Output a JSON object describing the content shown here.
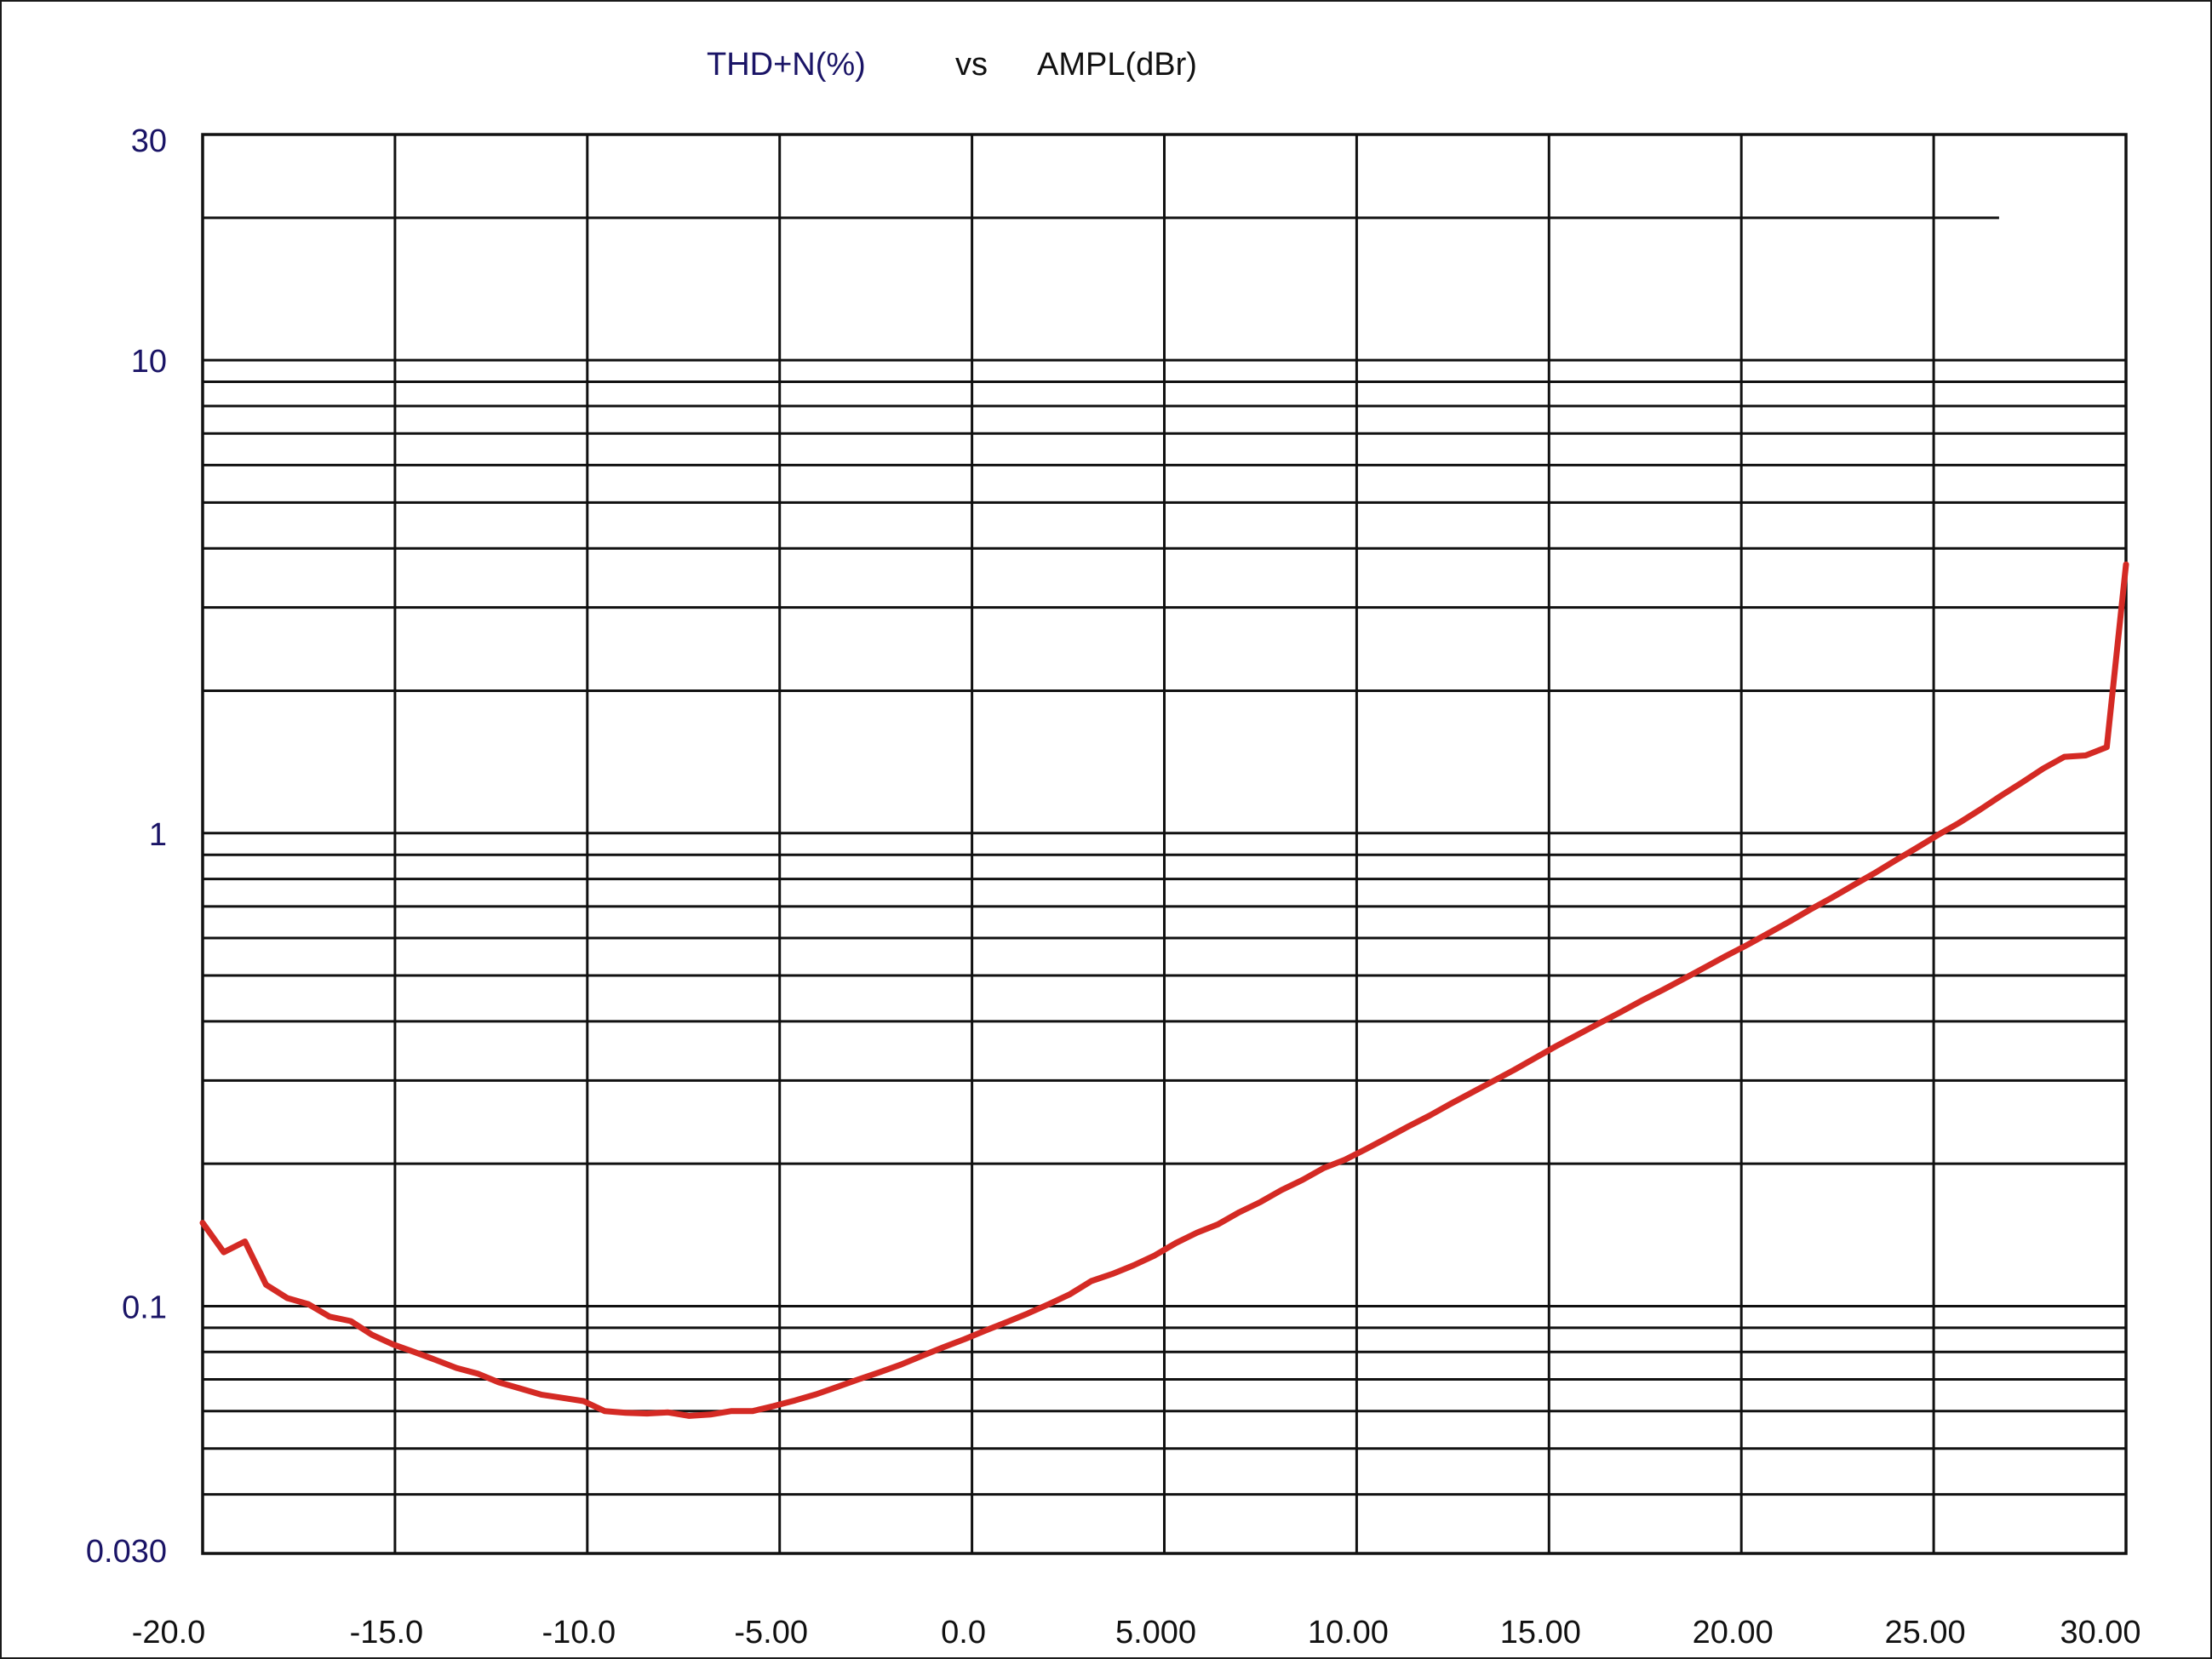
{
  "chart_data": {
    "type": "line",
    "title_parts": [
      {
        "text": "THD+N(%)",
        "color": "#1a1466"
      },
      {
        "text": "vs",
        "color": "#111111"
      },
      {
        "text": "AMPL(dBr)",
        "color": "#111111"
      }
    ],
    "xlabel": "",
    "ylabel": "",
    "x_scale": "linear",
    "y_scale": "log",
    "xlim": [
      -20,
      30
    ],
    "ylim": [
      0.03,
      30
    ],
    "x_ticks": [
      {
        "value": -20,
        "label": "-20.0"
      },
      {
        "value": -15,
        "label": "-15.0"
      },
      {
        "value": -10,
        "label": "-10.0"
      },
      {
        "value": -5,
        "label": "-5.00"
      },
      {
        "value": 0,
        "label": "0.0"
      },
      {
        "value": 5,
        "label": "5.000"
      },
      {
        "value": 10,
        "label": "10.00"
      },
      {
        "value": 15,
        "label": "15.00"
      },
      {
        "value": 20,
        "label": "20.00"
      },
      {
        "value": 25,
        "label": "25.00"
      },
      {
        "value": 30,
        "label": "30.00"
      }
    ],
    "y_ticks": [
      {
        "value": 30,
        "label": "30"
      },
      {
        "value": 10,
        "label": "10"
      },
      {
        "value": 1,
        "label": "1"
      },
      {
        "value": 0.1,
        "label": "0.1"
      },
      {
        "value": 0.03,
        "label": "0.030"
      }
    ],
    "y_grid_values": [
      0.04,
      0.05,
      0.06,
      0.07,
      0.08,
      0.09,
      0.1,
      0.2,
      0.3,
      0.4,
      0.5,
      0.6,
      0.7,
      0.8,
      0.9,
      1,
      2,
      3,
      4,
      5,
      6,
      7,
      8,
      9,
      10,
      20
    ],
    "grid": true,
    "legend": "none",
    "series": [
      {
        "color": "#d42a24",
        "x": [
          -20.0,
          -19.45,
          -18.9,
          -18.35,
          -17.8,
          -17.25,
          -16.7,
          -16.15,
          -15.6,
          -15.05,
          -14.5,
          -13.95,
          -13.4,
          -12.85,
          -12.3,
          -11.75,
          -11.2,
          -10.65,
          -10.1,
          -9.55,
          -9.0,
          -8.45,
          -7.9,
          -7.35,
          -6.8,
          -6.25,
          -5.7,
          -5.15,
          -4.6,
          -4.05,
          -3.5,
          -2.95,
          -2.4,
          -1.85,
          -1.3,
          -0.75,
          -0.2,
          0.35,
          0.9,
          1.45,
          2.0,
          2.55,
          3.1,
          3.65,
          4.2,
          4.75,
          5.3,
          5.85,
          6.4,
          6.95,
          7.5,
          8.05,
          8.6,
          9.15,
          9.7,
          10.25,
          10.8,
          11.35,
          11.9,
          12.45,
          13.0,
          13.55,
          14.1,
          14.65,
          15.2,
          15.75,
          16.3,
          16.85,
          17.4,
          17.95,
          18.5,
          19.05,
          19.6,
          20.15,
          20.7,
          21.25,
          21.8,
          22.35,
          22.9,
          23.45,
          24.0,
          24.55,
          25.1,
          25.65,
          26.2,
          26.75,
          27.3,
          27.85,
          28.4,
          28.95,
          29.5,
          30.0
        ],
        "y": [
          0.15,
          0.13,
          0.137,
          0.111,
          0.104,
          0.101,
          0.095,
          0.093,
          0.087,
          0.083,
          0.08,
          0.077,
          0.074,
          0.072,
          0.069,
          0.067,
          0.065,
          0.064,
          0.063,
          0.06,
          0.0595,
          0.0593,
          0.0596,
          0.0586,
          0.059,
          0.06,
          0.06,
          0.0615,
          0.0632,
          0.0651,
          0.0675,
          0.07,
          0.0725,
          0.0752,
          0.0785,
          0.0818,
          0.0851,
          0.0888,
          0.0925,
          0.0965,
          0.101,
          0.106,
          0.113,
          0.117,
          0.122,
          0.128,
          0.136,
          0.143,
          0.149,
          0.158,
          0.166,
          0.176,
          0.185,
          0.196,
          0.204,
          0.215,
          0.227,
          0.24,
          0.253,
          0.268,
          0.283,
          0.299,
          0.316,
          0.335,
          0.355,
          0.375,
          0.396,
          0.418,
          0.442,
          0.466,
          0.492,
          0.52,
          0.55,
          0.58,
          0.614,
          0.65,
          0.69,
          0.73,
          0.775,
          0.822,
          0.875,
          0.93,
          0.99,
          1.05,
          1.12,
          1.2,
          1.28,
          1.37,
          1.45,
          1.46,
          1.52,
          3.7
        ]
      }
    ],
    "annotations": [
      {
        "type": "hline",
        "y": 20,
        "x_end": 26.7
      }
    ]
  }
}
